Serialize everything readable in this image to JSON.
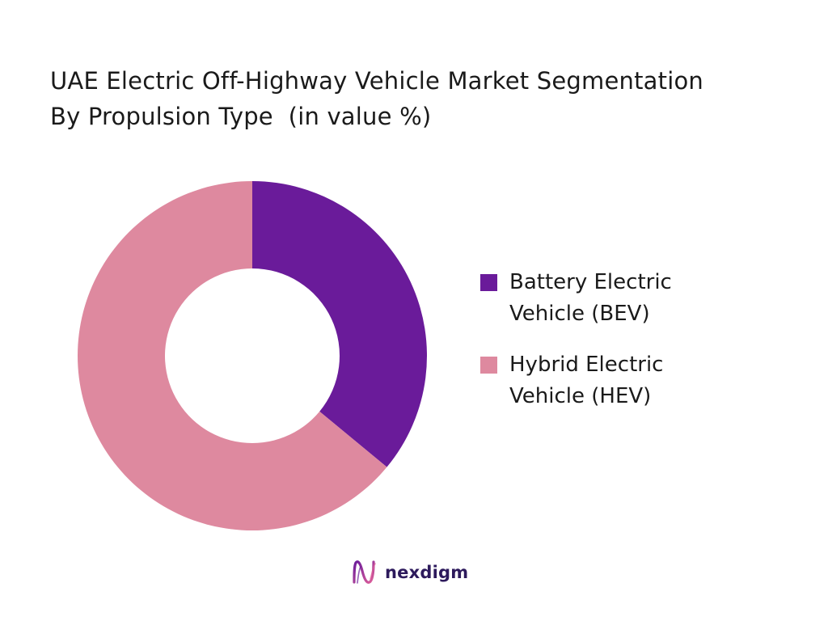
{
  "title_lines": [
    "UAE Electric Off-Highway Vehicle Market Segmentation",
    "By Propulsion Type  (in value %)"
  ],
  "chart_data": {
    "type": "pie",
    "style": "donut",
    "categories": [
      "Battery Electric Vehicle (BEV)",
      "Hybrid Electric Vehicle (HEV)"
    ],
    "values": [
      36,
      64
    ],
    "colors": [
      "#6a1b9a",
      "#de899f"
    ],
    "legend": {
      "placement": "right",
      "entries": [
        {
          "line1": "Battery Electric",
          "line2": "Vehicle (BEV)"
        },
        {
          "line1": "Hybrid Electric",
          "line2": "Vehicle (HEV)"
        }
      ]
    },
    "title": "UAE Electric Off-Highway Vehicle Market Segmentation By Propulsion Type  (in value %)"
  },
  "brand": {
    "name": "nexdigm",
    "icon": "nexdigm-logo-icon",
    "color": "#2d1a5c"
  }
}
